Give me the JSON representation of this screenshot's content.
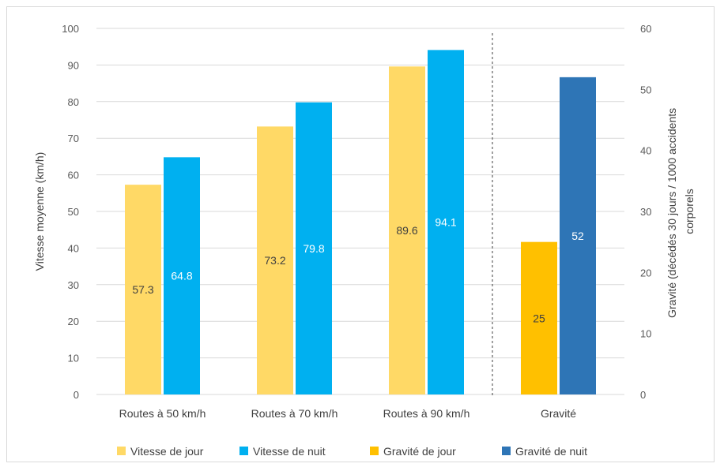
{
  "chart_data": {
    "type": "bar",
    "categories": [
      "Routes à 50 km/h",
      "Routes à 70 km/h",
      "Routes à 90 km/h",
      "Gravité"
    ],
    "series": [
      {
        "name": "Vitesse de jour",
        "axis": "left",
        "color": "#ffd966",
        "label_color": "#404040",
        "values": [
          57.3,
          73.2,
          89.6,
          null
        ],
        "labels": [
          "57.3",
          "73.2",
          "89.6",
          ""
        ]
      },
      {
        "name": "Vitesse de nuit",
        "axis": "left",
        "color": "#00b0f0",
        "label_color": "#ffffff",
        "values": [
          64.8,
          79.8,
          94.1,
          null
        ],
        "labels": [
          "64.8",
          "79.8",
          "94.1",
          ""
        ]
      },
      {
        "name": "Gravité de jour",
        "axis": "right",
        "color": "#ffc000",
        "label_color": "#404040",
        "values": [
          null,
          null,
          null,
          25
        ],
        "labels": [
          "",
          "",
          "",
          "25"
        ]
      },
      {
        "name": "Gravité de nuit",
        "axis": "right",
        "color": "#2e75b6",
        "label_color": "#ffffff",
        "values": [
          null,
          null,
          null,
          52
        ],
        "labels": [
          "",
          "",
          "",
          "52"
        ]
      }
    ],
    "ylabel": "Vitesse moyenne  (km/h)",
    "y2label_lines": [
      "Gravité (décédés 30 jours / 1000 accidents",
      "corporels"
    ],
    "ylim": [
      0,
      100
    ],
    "y2lim": [
      0,
      60
    ],
    "yticks": [
      "0",
      "10",
      "20",
      "30",
      "40",
      "50",
      "60",
      "70",
      "80",
      "90",
      "100"
    ],
    "y2ticks": [
      "0",
      "10",
      "20",
      "30",
      "40",
      "50",
      "60"
    ],
    "grid": true,
    "separator_before_category": "Gravité",
    "legend_position": "bottom"
  }
}
